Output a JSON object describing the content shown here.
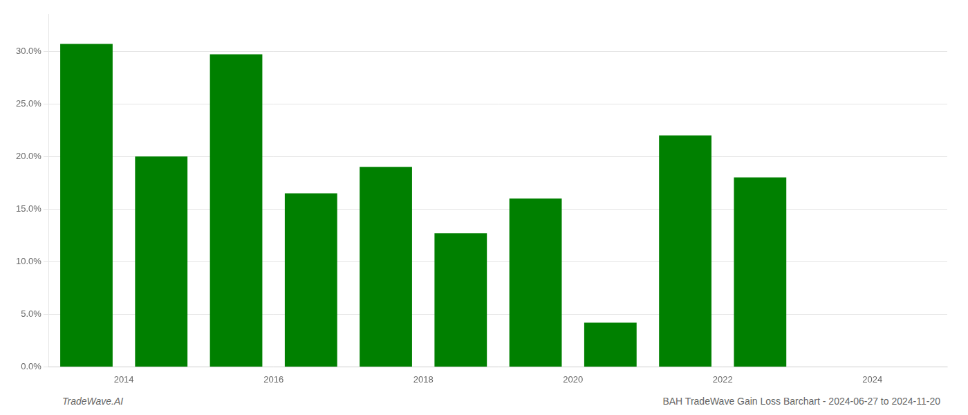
{
  "chart_data": {
    "type": "bar",
    "x": [
      2013.5,
      2014.5,
      2015.5,
      2016.5,
      2017.5,
      2018.5,
      2019.5,
      2020.5,
      2021.5,
      2022.5
    ],
    "values": [
      0.307,
      0.2,
      0.297,
      0.165,
      0.19,
      0.127,
      0.16,
      0.042,
      0.22,
      0.18
    ],
    "color": "#008000",
    "xlim": [
      2013.0,
      2025.0
    ],
    "xticks": [
      2014,
      2016,
      2018,
      2020,
      2022,
      2024
    ],
    "ylim": [
      0,
      0.335
    ],
    "yticks": [
      {
        "value": 0.0,
        "label": "0.0%"
      },
      {
        "value": 0.05,
        "label": "5.0%"
      },
      {
        "value": 0.1,
        "label": "10.0%"
      },
      {
        "value": 0.15,
        "label": "15.0%"
      },
      {
        "value": 0.2,
        "label": "20.0%"
      },
      {
        "value": 0.25,
        "label": "25.0%"
      },
      {
        "value": 0.3,
        "label": "30.0%"
      }
    ],
    "grid": true,
    "annotations": [
      "TradeWave.AI",
      "BAH TradeWave Gain Loss Barchart - 2024-06-27 to 2024-11-20"
    ]
  }
}
